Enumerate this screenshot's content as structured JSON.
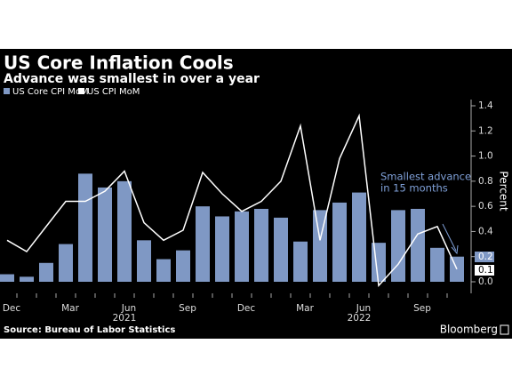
{
  "chart_data": {
    "type": "bar_line",
    "title": "US Core Inflation Cools",
    "subtitle": "Advance was smallest in over a year",
    "y_label": "Percent",
    "source": "Source: Bureau of Labor Statistics",
    "brand": "Bloomberg",
    "annotation": [
      "Smallest advance",
      "in 15 months"
    ],
    "categories": [
      "Dec",
      null,
      null,
      "Mar",
      null,
      null,
      "Jun",
      null,
      null,
      "Sep",
      null,
      null,
      "Dec",
      null,
      null,
      "Mar",
      null,
      null,
      "Jun",
      null,
      null,
      "Sep",
      null,
      null
    ],
    "year_labels": [
      "2021",
      "2022"
    ],
    "series": [
      {
        "name": "US Core CPI MoM",
        "color": "#7f98c4",
        "kind": "bar",
        "values": [
          0.06,
          0.04,
          0.15,
          0.3,
          0.86,
          0.75,
          0.8,
          0.33,
          0.18,
          0.25,
          0.6,
          0.52,
          0.56,
          0.58,
          0.51,
          0.32,
          0.57,
          0.63,
          0.71,
          0.31,
          0.57,
          0.58,
          0.27,
          0.2
        ]
      },
      {
        "name": "US CPI MoM",
        "color": "#ffffff",
        "kind": "line",
        "values": [
          0.33,
          0.24,
          0.44,
          0.64,
          0.64,
          0.72,
          0.88,
          0.47,
          0.33,
          0.41,
          0.87,
          0.7,
          0.56,
          0.64,
          0.8,
          1.24,
          0.33,
          0.98,
          1.32,
          -0.03,
          0.14,
          0.38,
          0.44,
          0.1
        ]
      }
    ],
    "ylim": [
      -0.05,
      1.45
    ],
    "yticks": [
      {
        "value": 0,
        "label": "0.0"
      },
      {
        "value": 0.2,
        "label": "0.2"
      },
      {
        "value": 0.4,
        "label": "0.4"
      },
      {
        "value": 0.6,
        "label": "0.6"
      },
      {
        "value": 0.8,
        "label": "0.8"
      },
      {
        "value": 1,
        "label": "1.0"
      },
      {
        "value": 1.2,
        "label": "1.2"
      },
      {
        "value": 1.4,
        "label": "1.4"
      }
    ],
    "grid": false
  }
}
